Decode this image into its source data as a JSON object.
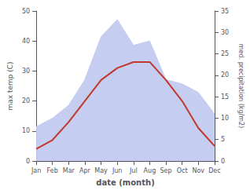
{
  "chart_data": {
    "type": "line",
    "categories": [
      "Jan",
      "Feb",
      "Mar",
      "Apr",
      "May",
      "Jun",
      "Jul",
      "Aug",
      "Sep",
      "Oct",
      "Nov",
      "Dec"
    ],
    "xlabel": "date (month)",
    "ylabel": "max temp (C)",
    "y2label": "med. precipitation (kg/m2)",
    "series": [
      {
        "type": "area",
        "axis": "y2",
        "color": "#c5cdf0",
        "values": [
          8,
          10,
          13,
          19,
          29,
          33,
          27,
          28,
          19,
          18,
          16,
          11
        ]
      },
      {
        "type": "line",
        "color": "#c0392b",
        "values": [
          4,
          7,
          13,
          20,
          27,
          31,
          33,
          33,
          27,
          20,
          11,
          5
        ]
      }
    ],
    "ylim": [
      0,
      50
    ],
    "yticks": [
      0,
      10,
      20,
      30,
      40,
      50
    ],
    "y2lim": [
      0,
      35
    ],
    "y2ticks": [
      0,
      5,
      10,
      15,
      20,
      25,
      30,
      35
    ],
    "grid": false
  }
}
